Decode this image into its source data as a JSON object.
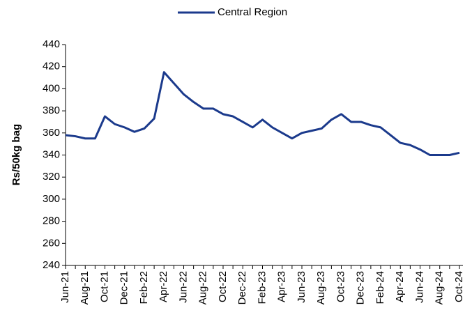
{
  "chart_data": {
    "type": "line",
    "y_label": "Rs/50kg bag",
    "categories": [
      "Jun-21",
      null,
      "Aug-21",
      null,
      "Oct-21",
      null,
      "Dec-21",
      null,
      "Feb-22",
      null,
      "Apr-22",
      null,
      "Jun-22",
      null,
      "Aug-22",
      null,
      "Oct-22",
      null,
      "Dec-22",
      null,
      "Feb-23",
      null,
      "Apr-23",
      null,
      "Jun-23",
      null,
      "Aug-23",
      null,
      "Oct-23",
      null,
      "Dec-23",
      null,
      "Feb-24",
      null,
      "Apr-24",
      null,
      "Jun-24",
      null,
      "Aug-24",
      null,
      "Oct-24"
    ],
    "series": [
      {
        "name": "Central Region",
        "color": "#1b3a8c",
        "values": [
          358,
          357,
          355,
          355,
          375,
          368,
          365,
          361,
          364,
          373,
          415,
          405,
          395,
          388,
          382,
          382,
          377,
          375,
          370,
          365,
          372,
          365,
          360,
          355,
          360,
          362,
          364,
          372,
          377,
          370,
          370,
          367,
          365,
          358,
          351,
          349,
          345,
          340,
          340,
          340,
          342
        ]
      }
    ],
    "ylim": [
      240,
      440
    ],
    "yticks": [
      240,
      260,
      280,
      300,
      320,
      340,
      360,
      380,
      400,
      420,
      440
    ],
    "legend": "top"
  }
}
